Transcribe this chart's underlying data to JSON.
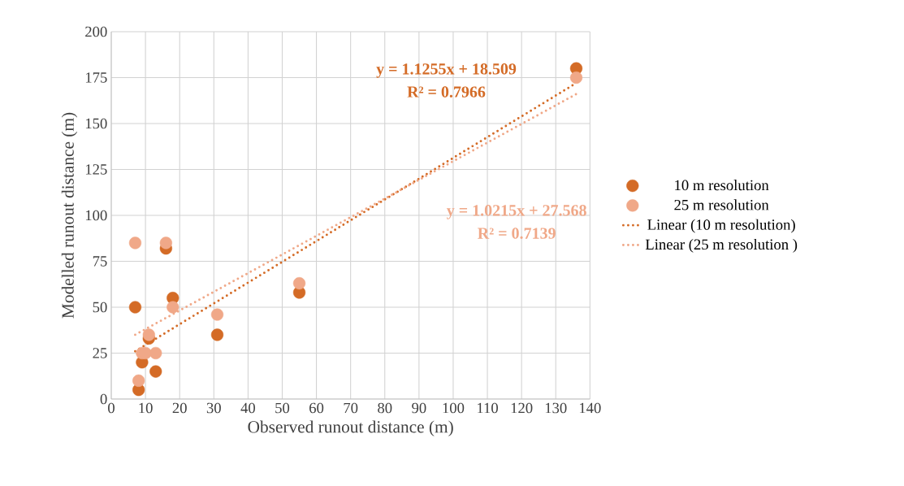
{
  "chart_data": {
    "type": "scatter",
    "xlabel": "Observed runout distance (m)",
    "ylabel": "Modelled runout distance (m)",
    "xlim": [
      0,
      140
    ],
    "xticks": [
      0,
      10,
      20,
      30,
      40,
      50,
      60,
      70,
      80,
      90,
      100,
      110,
      120,
      130,
      140
    ],
    "ylim": [
      0,
      200
    ],
    "yticks": [
      0,
      25,
      50,
      75,
      100,
      125,
      150,
      175,
      200
    ],
    "grid": true,
    "legend": "right",
    "marker": "circle",
    "series": [
      {
        "name": "10 m resolution",
        "color": "#d46b26",
        "x": [
          7,
          8,
          9,
          11,
          13,
          16,
          18,
          31,
          55,
          136
        ],
        "values": [
          50,
          5,
          20,
          33,
          15,
          82,
          55,
          35,
          58,
          180
        ]
      },
      {
        "name": "25 m resolution",
        "color": "#f0a888",
        "x": [
          7,
          8,
          9,
          10,
          11,
          13,
          16,
          18,
          31,
          55,
          136
        ],
        "values": [
          85,
          10,
          25,
          25,
          35,
          25,
          85,
          50,
          46,
          63,
          175
        ]
      },
      {
        "name": "Linear (10 m resolution)",
        "type": "line",
        "line_style": "dotted",
        "marker": "none",
        "color": "#d46b26",
        "x": [
          7,
          136
        ],
        "values": [
          26,
          172
        ]
      },
      {
        "name": "Linear (25 m resolution )",
        "type": "line",
        "line_style": "dotted",
        "marker": "none",
        "color": "#f0a888",
        "x": [
          7,
          136
        ],
        "values": [
          35,
          166
        ]
      }
    ],
    "annotations": [
      "y = 1.1255x + 18.509",
      "R² = 0.7966",
      "y = 1.0215x + 27.568",
      "R² = 0.7139"
    ]
  }
}
